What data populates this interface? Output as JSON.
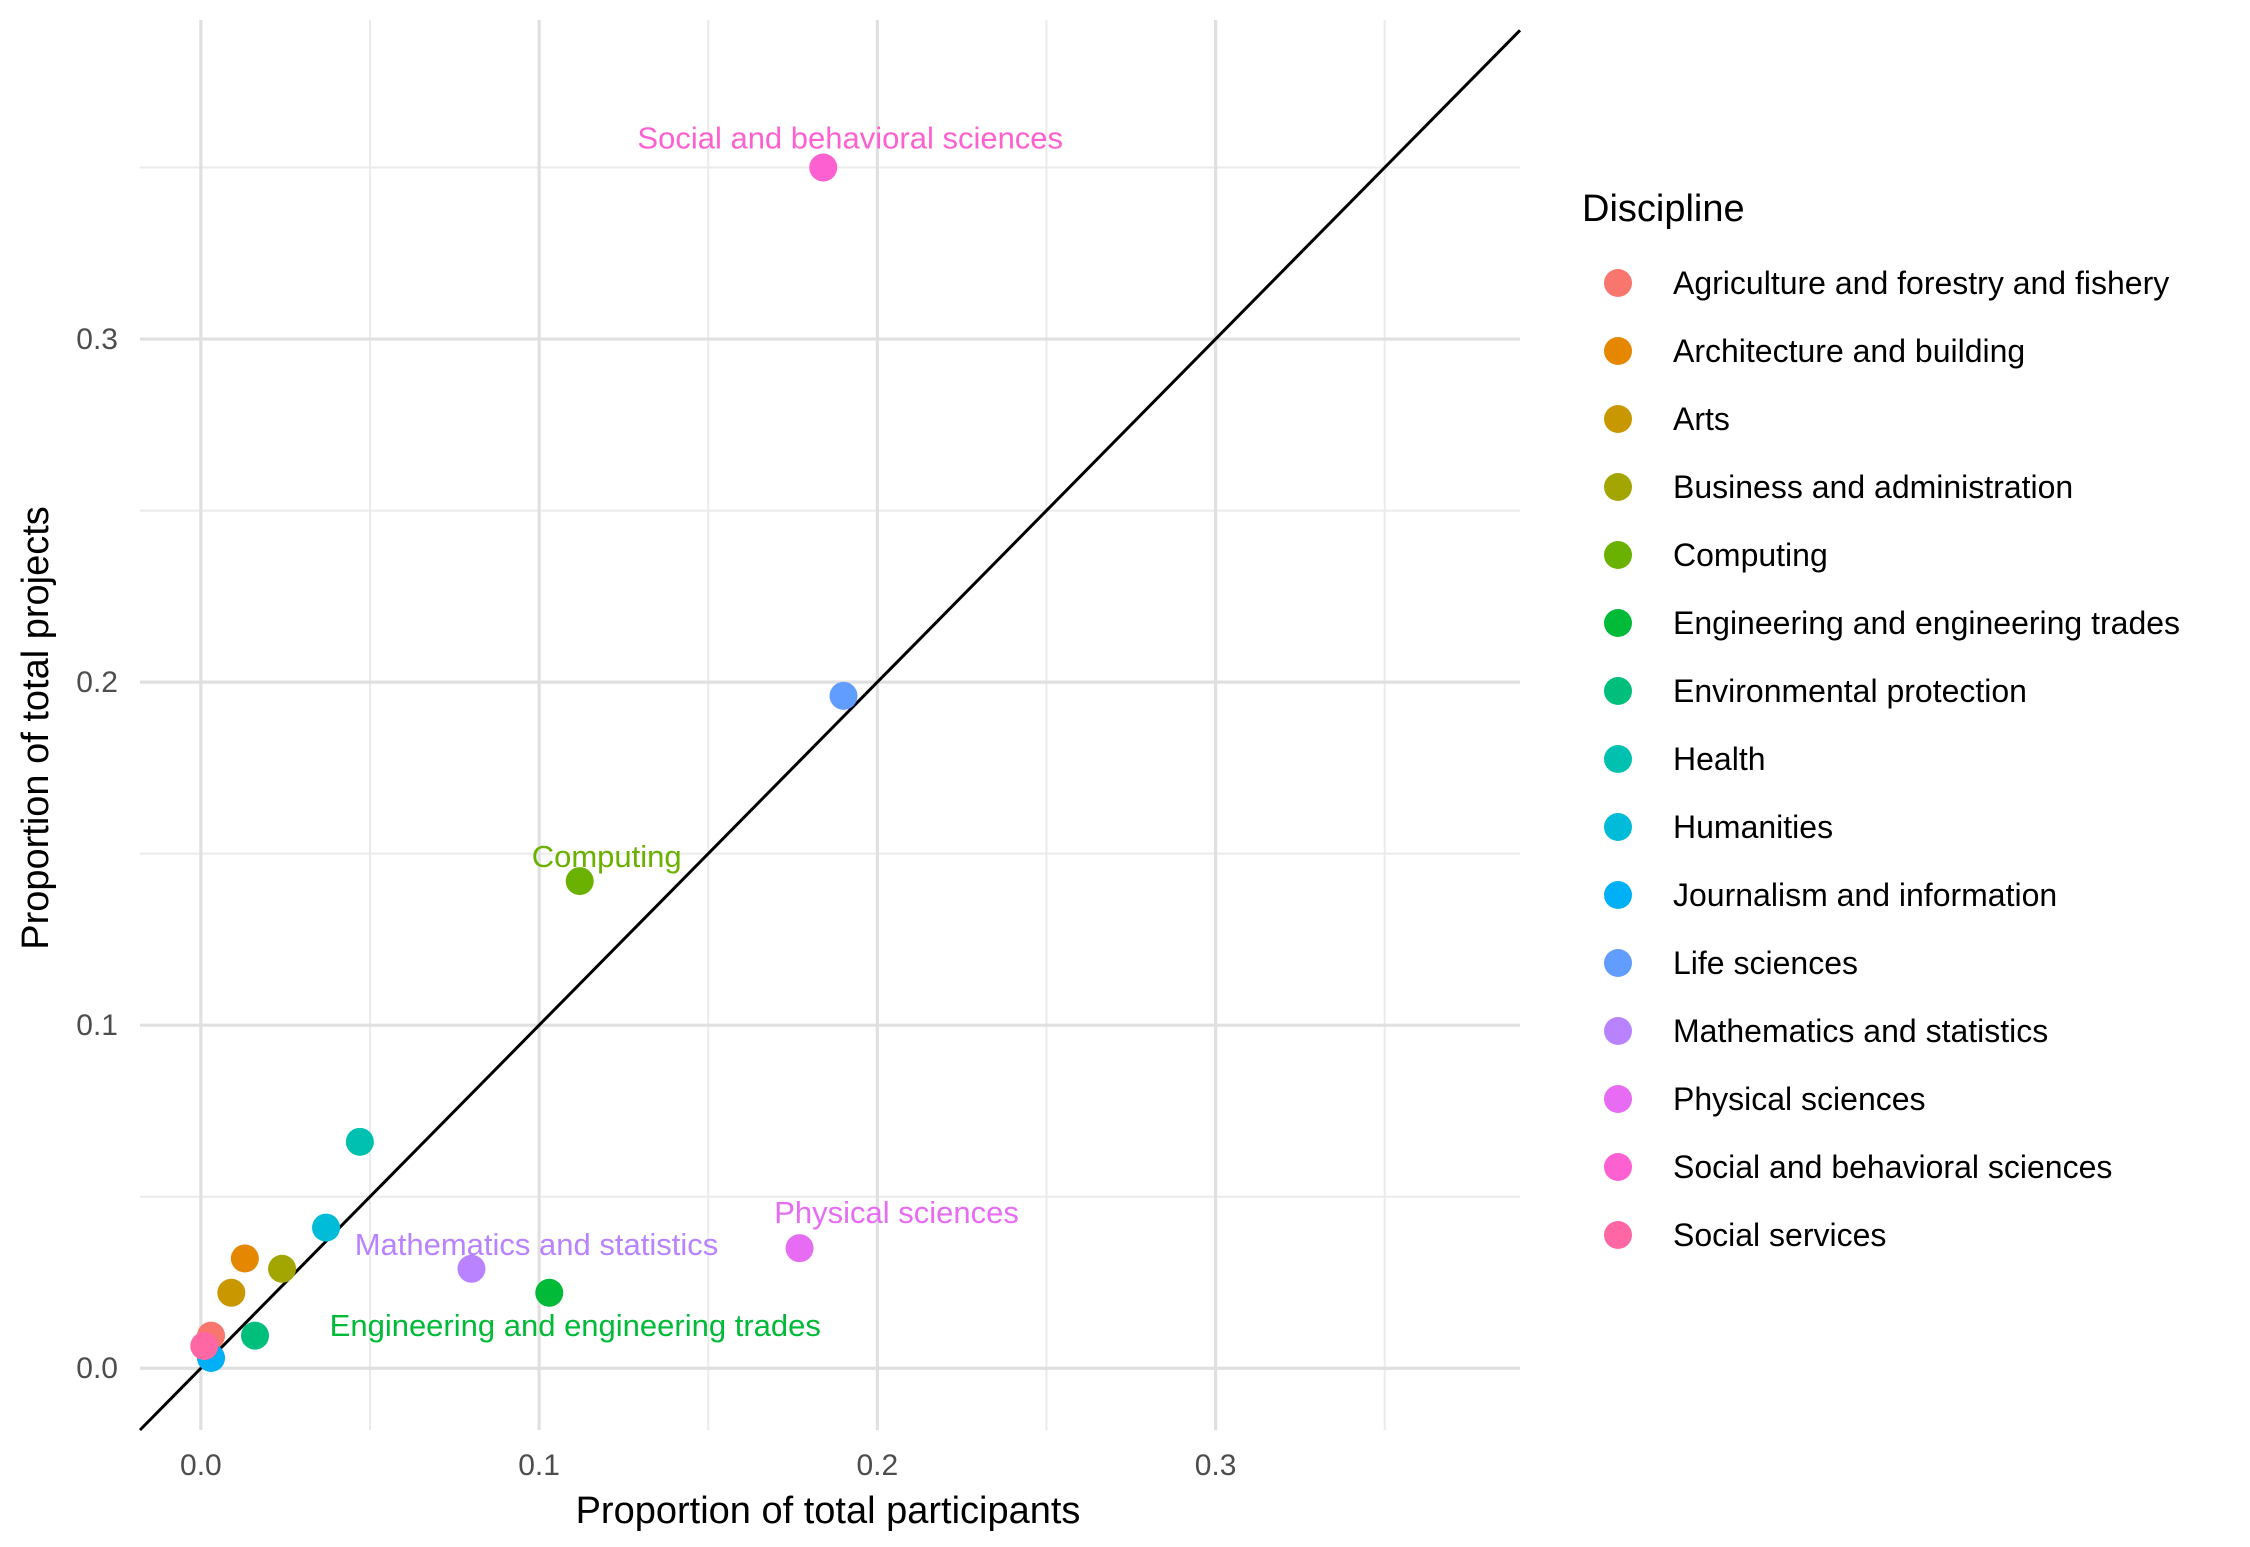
{
  "chart_data": {
    "type": "scatter",
    "xlabel": "Proportion of total participants",
    "ylabel": "Proportion of total projects",
    "xlim": [
      -0.018,
      0.39
    ],
    "ylim": [
      -0.018,
      0.393
    ],
    "x_ticks": [
      0.0,
      0.1,
      0.2,
      0.3
    ],
    "x_tick_labels": [
      "0.0",
      "0.1",
      "0.2",
      "0.3"
    ],
    "x_minor": [
      0.05,
      0.15,
      0.25,
      0.35
    ],
    "y_ticks": [
      0.0,
      0.1,
      0.2,
      0.3
    ],
    "y_tick_labels": [
      "0.0",
      "0.1",
      "0.2",
      "0.3"
    ],
    "y_minor": [
      0.05,
      0.15,
      0.25,
      0.35
    ],
    "grid": true,
    "reference_line": {
      "type": "identity",
      "color": "#000000"
    },
    "legend_title": "Discipline",
    "legend_position": "right",
    "series": [
      {
        "name": "Agriculture and forestry and fishery",
        "color": "#F8766D",
        "x": 0.003,
        "y": 0.0095,
        "label": ""
      },
      {
        "name": "Architecture and building",
        "color": "#E58700",
        "x": 0.013,
        "y": 0.032,
        "label": ""
      },
      {
        "name": "Arts",
        "color": "#C99800",
        "x": 0.009,
        "y": 0.022,
        "label": ""
      },
      {
        "name": "Business and administration",
        "color": "#A3A500",
        "x": 0.024,
        "y": 0.029,
        "label": ""
      },
      {
        "name": "Computing",
        "color": "#6BB100",
        "x": 0.112,
        "y": 0.142,
        "label": "Computing"
      },
      {
        "name": "Engineering and engineering trades",
        "color": "#00BA38",
        "x": 0.103,
        "y": 0.022,
        "label": "Engineering and engineering trades"
      },
      {
        "name": "Environmental protection",
        "color": "#00BF7D",
        "x": 0.016,
        "y": 0.0095,
        "label": ""
      },
      {
        "name": "Health",
        "color": "#00C0AF",
        "x": 0.047,
        "y": 0.066,
        "label": ""
      },
      {
        "name": "Humanities",
        "color": "#00BCD8",
        "x": 0.037,
        "y": 0.041,
        "label": ""
      },
      {
        "name": "Journalism and information",
        "color": "#00B0F6",
        "x": 0.003,
        "y": 0.003,
        "label": ""
      },
      {
        "name": "Life sciences",
        "color": "#619CFF",
        "x": 0.19,
        "y": 0.196,
        "label": ""
      },
      {
        "name": "Mathematics and statistics",
        "color": "#B983FF",
        "x": 0.08,
        "y": 0.029,
        "label": "Mathematics and statistics"
      },
      {
        "name": "Physical sciences",
        "color": "#E76BF3",
        "x": 0.177,
        "y": 0.035,
        "label": "Physical sciences"
      },
      {
        "name": "Social and behavioral sciences",
        "color": "#FD61D1",
        "x": 0.184,
        "y": 0.35,
        "label": "Social and behavioral sciences"
      },
      {
        "name": "Social services",
        "color": "#FF67A4",
        "x": 0.001,
        "y": 0.0065,
        "label": ""
      }
    ]
  }
}
